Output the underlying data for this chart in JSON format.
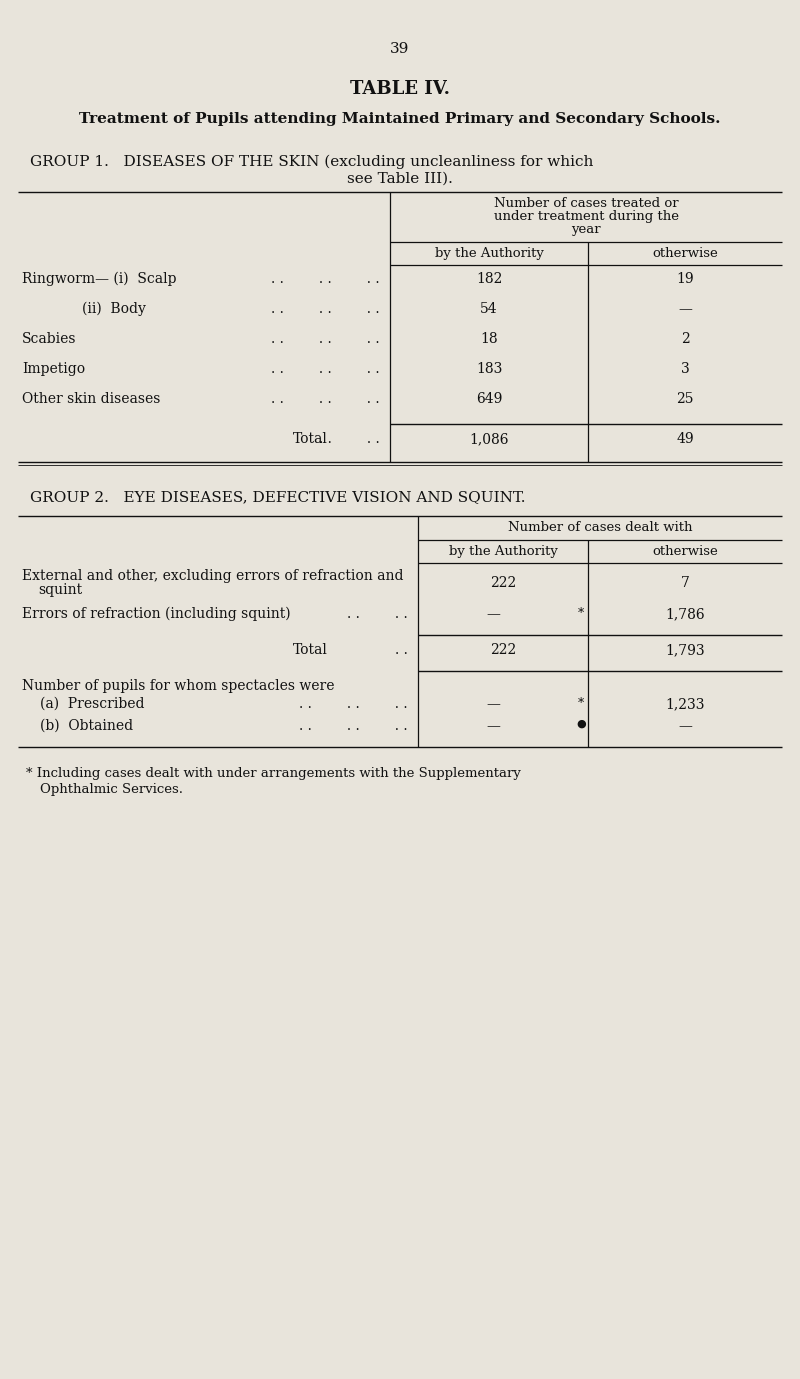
{
  "bg_color": "#e8e4db",
  "page_number": "39",
  "title": "TABLE IV.",
  "subtitle": "Treatment of Pupils attending Maintained Primary and Secondary Schools.",
  "group1_heading_line1": "GROUP 1.   DISEASES OF THE SKIN (excluding uncleanliness for which",
  "group1_heading_line2": "see Table III).",
  "group1_col_header_top": "Number of cases treated or\nunder treatment during the\nyear",
  "group1_col1_header": "by the Authority",
  "group1_col2_header": "otherwise",
  "group1_rows": [
    {
      "label": "Ringworm— (i)  Scalp",
      "indent": 0,
      "col1": "182",
      "col2": "19"
    },
    {
      "label": "(ii)  Body",
      "indent": 60,
      "col1": "54",
      "col2": "—"
    },
    {
      "label": "Scabies",
      "indent": 0,
      "col1": "18",
      "col2": "2"
    },
    {
      "label": "Impetigo",
      "indent": 0,
      "col1": "183",
      "col2": "3"
    },
    {
      "label": "Other skin diseases",
      "indent": 0,
      "col1": "649",
      "col2": "25"
    }
  ],
  "group1_total_label": "Total",
  "group1_total_col1": "1,086",
  "group1_total_col2": "49",
  "group2_heading": "GROUP 2.   EYE DISEASES, DEFECTIVE VISION AND SQUINT.",
  "group2_col_header_top": "Number of cases dealt with",
  "group2_col1_header": "by the Authority",
  "group2_col2_header": "otherwise",
  "group2_row1_label_line1": "External and other, excluding errors of refraction and",
  "group2_row1_label_line2": "squint",
  "group2_row1_col1": "222",
  "group2_row1_col2": "7",
  "group2_row2_label": "Errors of refraction (including squint)",
  "group2_row2_col1_dash": "—",
  "group2_row2_col1_star": "*",
  "group2_row2_col2": "1,786",
  "group2_total_label": "Total",
  "group2_total_col1": "222",
  "group2_total_col2": "1,793",
  "group2_extra_heading": "Number of pupils for whom spectacles were",
  "group2_extra_row1_label": "(a)  Prescribed",
  "group2_extra_row1_col1_dash": "—",
  "group2_extra_row1_col1_star": "*",
  "group2_extra_row1_col2": "1,233",
  "group2_extra_row2_label": "(b)  Obtained",
  "group2_extra_row2_col1_dash": "—",
  "group2_extra_row2_col1_bullet": "●",
  "group2_extra_row2_col2": "—",
  "footnote_line1": "* Including cases dealt with under arrangements with the Supplementary",
  "footnote_line2": "Ophthalmic Services.",
  "dots": ". .        . ."
}
